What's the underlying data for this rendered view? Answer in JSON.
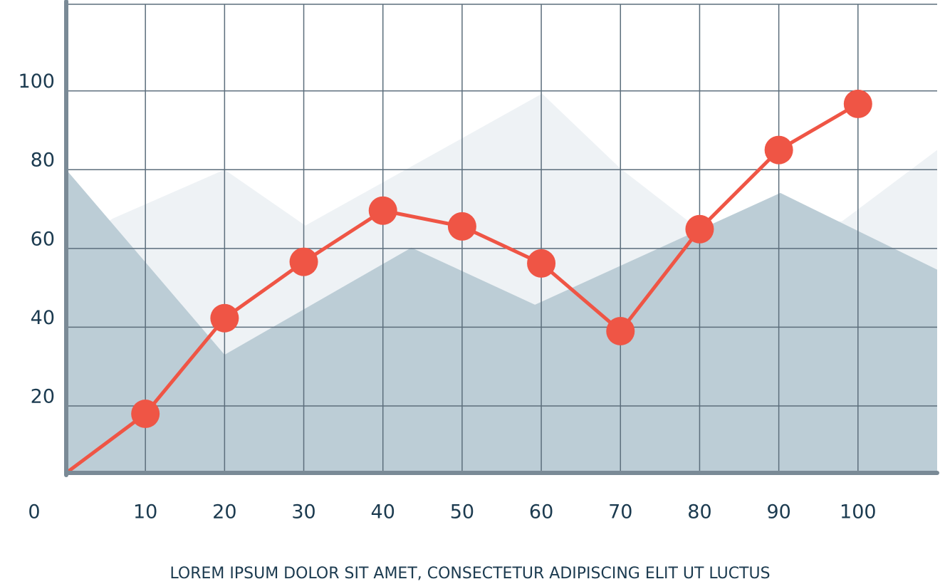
{
  "chart_data": {
    "type": "line",
    "caption": "LOREM IPSUM DOLOR SIT AMET, CONSECTETUR ADIPISCING ELIT UT LUCTUS",
    "xlim": [
      0,
      110
    ],
    "ylim": [
      3,
      122
    ],
    "xticks": [
      0,
      10,
      20,
      30,
      40,
      50,
      60,
      70,
      80,
      90,
      100
    ],
    "yticks": [
      20,
      40,
      60,
      80,
      100
    ],
    "grid": true,
    "series": [
      {
        "type": "area",
        "color": "#eef2f5",
        "x": [
          0,
          5.9,
          20,
          30.2,
          60.1,
          70,
          80,
          98,
          110
        ],
        "values": [
          60,
          67.6,
          80,
          65.8,
          99.3,
          80.3,
          64.7,
          66.9,
          85
        ]
      },
      {
        "type": "area",
        "color": "#bccdd6",
        "x": [
          0,
          20,
          43.6,
          59.2,
          90.2,
          110
        ],
        "values": [
          80,
          33,
          60.2,
          45.7,
          74.1,
          54.6
        ]
      },
      {
        "type": "line",
        "color": "#ef5545",
        "x": [
          0,
          10,
          20,
          30,
          40,
          50,
          60,
          70,
          80,
          90,
          100
        ],
        "values": [
          3,
          18,
          42.3,
          56.6,
          69.6,
          65.6,
          56.2,
          39,
          64.9,
          85,
          96.7
        ]
      }
    ]
  }
}
